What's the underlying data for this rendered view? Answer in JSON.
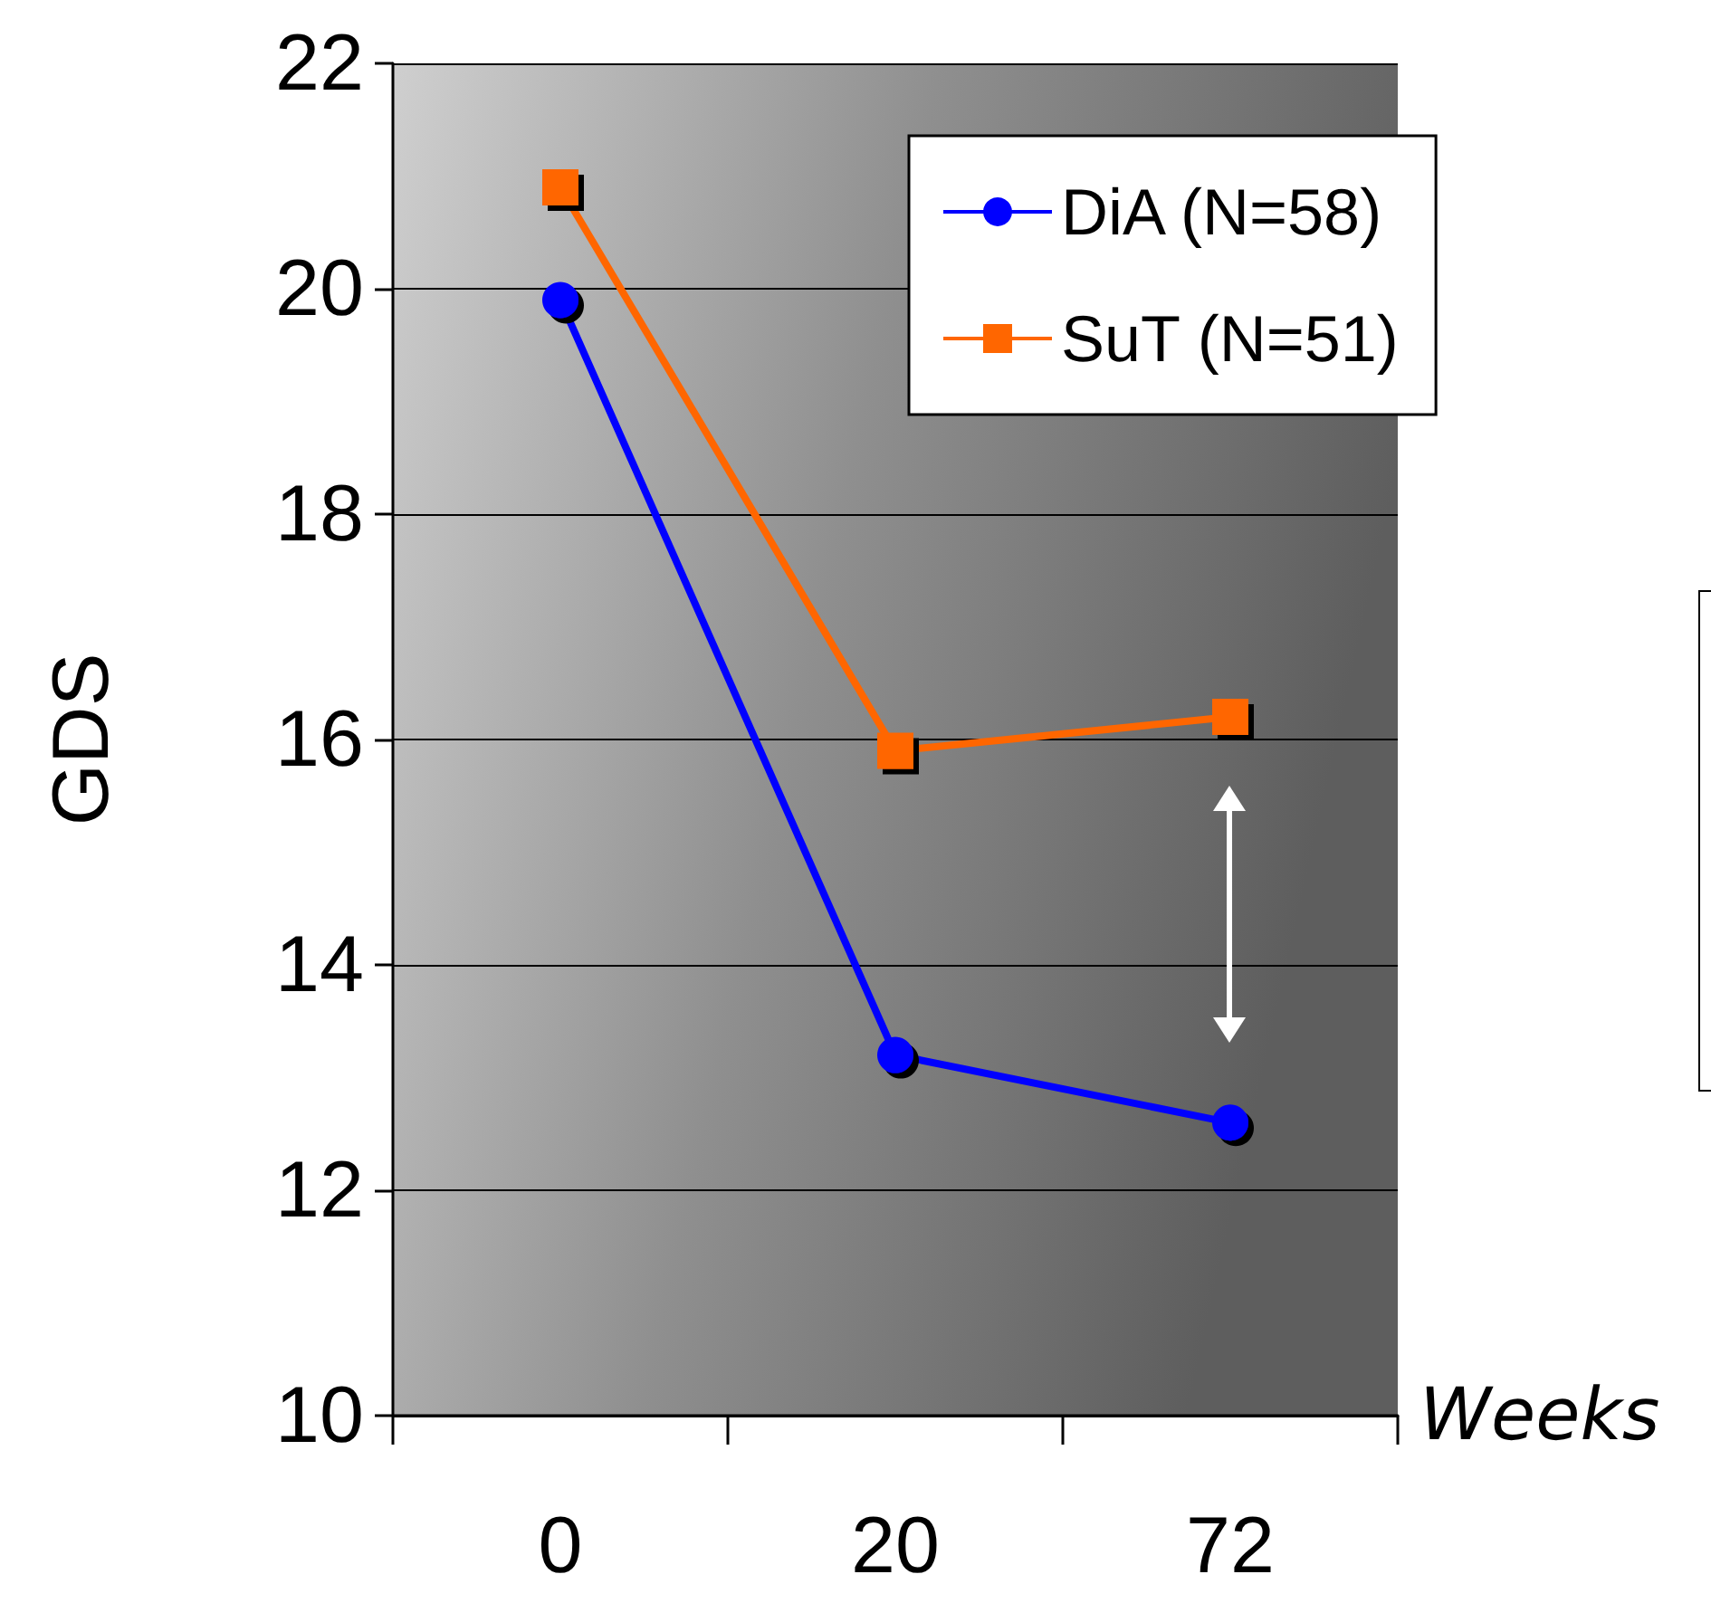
{
  "chart_data": {
    "type": "line",
    "ylabel": "GDS",
    "xlabel": "Weeks",
    "categories": [
      "0",
      "20",
      "72"
    ],
    "series": [
      {
        "name": "DiA (N=58)",
        "color": "#0000ff",
        "marker": "circle",
        "values": [
          19.9,
          13.2,
          12.6
        ]
      },
      {
        "name": "SuT (N=51)",
        "color": "#ff6600",
        "marker": "square",
        "values": [
          20.9,
          15.9,
          16.2
        ]
      }
    ],
    "ylim": [
      10,
      22
    ],
    "yticks": [
      10,
      12,
      14,
      16,
      18,
      20,
      22
    ],
    "grid": "y",
    "legend": "top right",
    "line_style": "solid"
  }
}
